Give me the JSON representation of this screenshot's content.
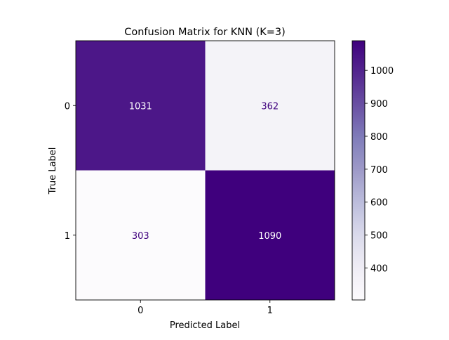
{
  "chart_data": {
    "type": "heatmap",
    "title": "Confusion Matrix for KNN (K=3)",
    "xlabel": "Predicted Label",
    "ylabel": "True Label",
    "x_categories": [
      "0",
      "1"
    ],
    "y_categories": [
      "0",
      "1"
    ],
    "values": [
      [
        1031,
        362
      ],
      [
        303,
        1090
      ]
    ],
    "colormap": "Purples",
    "colorbar": {
      "ticks": [
        400,
        500,
        600,
        700,
        800,
        900,
        1000
      ],
      "tick_labels": [
        "400",
        "500",
        "600",
        "700",
        "800",
        "900",
        "1000"
      ],
      "range": [
        303,
        1090
      ]
    },
    "colors": {
      "low": "#fcfbfd",
      "high": "#3f007d",
      "text_on_dark": "#ffffff",
      "text_on_light": "#3f007d"
    },
    "grid": false
  }
}
